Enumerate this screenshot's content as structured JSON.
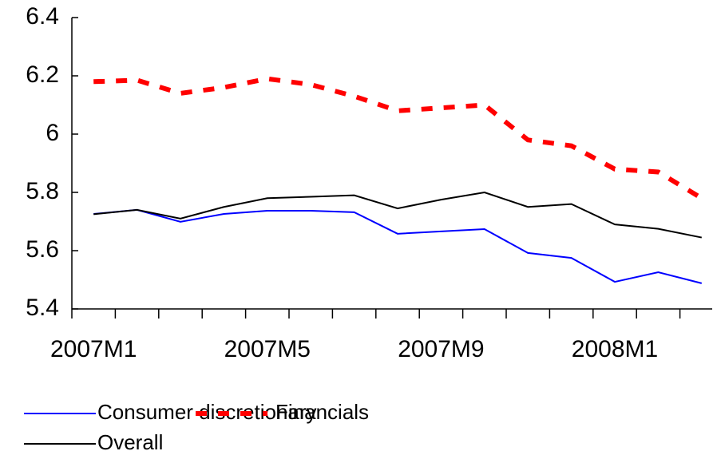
{
  "chart_data": {
    "type": "line",
    "categories": [
      "2007M1",
      null,
      null,
      null,
      "2007M5",
      null,
      null,
      null,
      "2007M9",
      null,
      null,
      null,
      "2008M1",
      null,
      null
    ],
    "series": [
      {
        "name": "Consumer discretionary",
        "color": "#0000ff",
        "dash": false,
        "values": [
          5.726,
          5.74,
          5.699,
          5.726,
          5.737,
          5.737,
          5.732,
          5.658,
          5.666,
          5.674,
          5.592,
          5.575,
          5.493,
          5.526,
          5.488
        ]
      },
      {
        "name": "Financials",
        "color": "#ff0000",
        "dash": true,
        "values": [
          6.18,
          6.185,
          6.14,
          6.16,
          6.19,
          6.17,
          6.13,
          6.08,
          6.09,
          6.1,
          5.98,
          5.96,
          5.88,
          5.87,
          5.78
        ]
      },
      {
        "name": "Overall",
        "color": "#000000",
        "dash": false,
        "values": [
          5.725,
          5.74,
          5.71,
          5.75,
          5.78,
          5.785,
          5.79,
          5.745,
          5.775,
          5.8,
          5.75,
          5.76,
          5.69,
          5.675,
          5.645
        ]
      }
    ],
    "ylim": [
      5.4,
      6.4
    ],
    "yticks": [
      5.4,
      5.6,
      5.8,
      6,
      6.2,
      6.4
    ],
    "grid": false
  }
}
